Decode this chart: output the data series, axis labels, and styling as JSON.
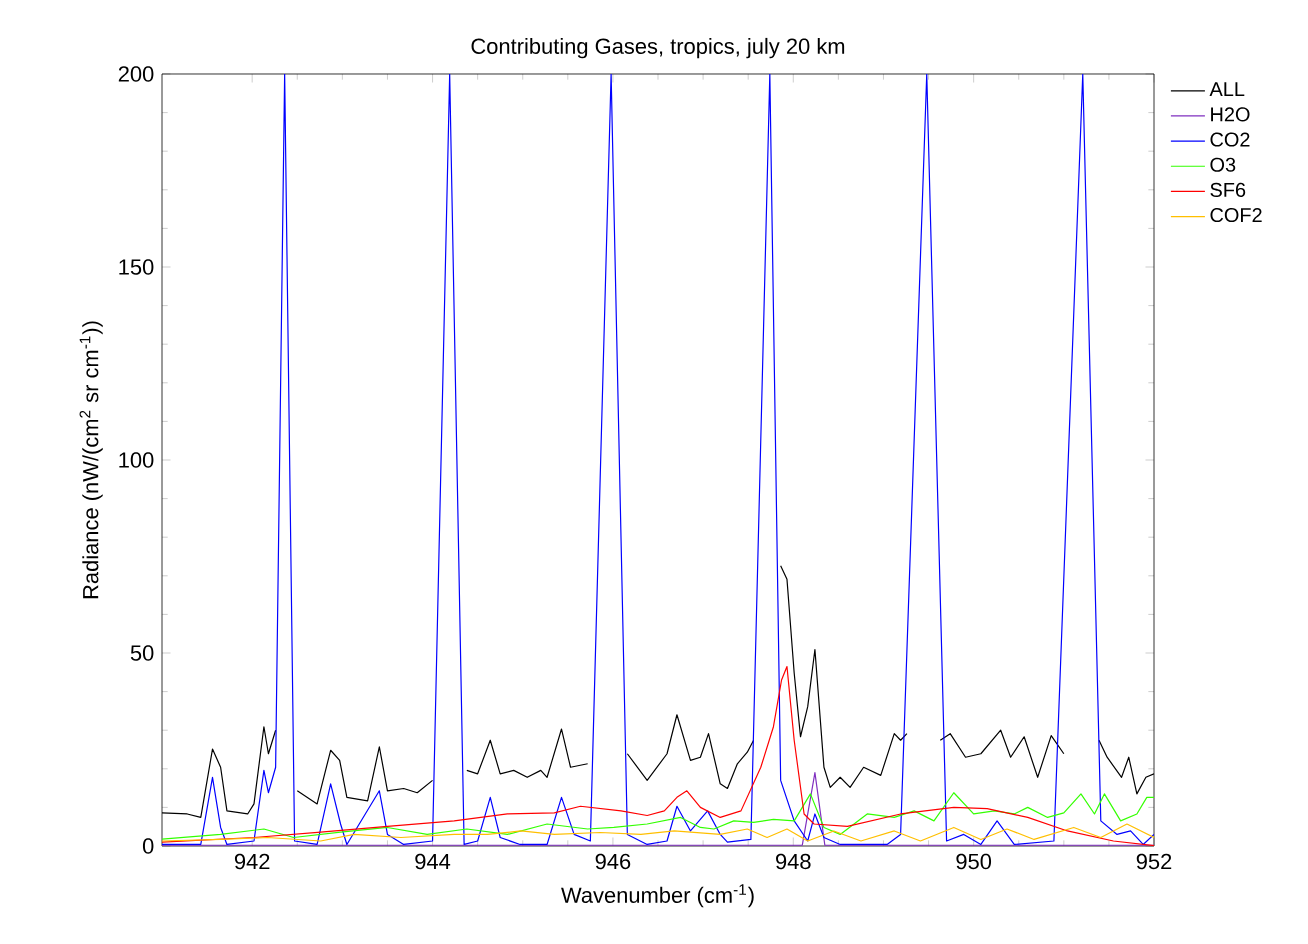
{
  "chart_data": {
    "type": "line",
    "title": "Contributing Gases, tropics, july 20 km",
    "xlabel": "Wavenumber (cm$^{-1}$)",
    "ylabel": "Radiance (nW/(cm$^{2}$ sr cm$^{-1}$))",
    "xlim": [
      941,
      952
    ],
    "xticks": [
      942,
      944,
      946,
      948,
      950,
      952
    ],
    "ylim": [
      0,
      200
    ],
    "yticks": [
      0,
      50,
      100,
      150,
      200
    ],
    "legend": "right",
    "grid": false,
    "series": [
      {
        "name": "ALL",
        "color": "#000000",
        "x": [
          941.0,
          941.28,
          941.43,
          941.56,
          941.65,
          941.72,
          941.95,
          942.02,
          942.13,
          942.18,
          942.26,
          942.36,
          942.5,
          942.72,
          942.87,
          942.97,
          943.05,
          943.28,
          943.41,
          943.5,
          943.68,
          943.83,
          944.0,
          944.19,
          944.38,
          944.5,
          944.64,
          944.75,
          944.9,
          945.05,
          945.2,
          945.27,
          945.43,
          945.53,
          945.72,
          945.98,
          946.16,
          946.38,
          946.6,
          946.71,
          946.86,
          946.97,
          947.06,
          947.19,
          947.27,
          947.38,
          947.49,
          947.56,
          947.74,
          947.86,
          947.93,
          948.01,
          948.08,
          948.16,
          948.24,
          948.34,
          948.41,
          948.52,
          948.63,
          948.78,
          948.97,
          949.12,
          949.19,
          949.26,
          949.48,
          949.63,
          949.74,
          949.91,
          950.08,
          950.3,
          950.41,
          950.56,
          950.71,
          950.86,
          951.0,
          951.21,
          951.39,
          951.48,
          951.64,
          951.72,
          951.81,
          951.91,
          952.0
        ],
        "values": [
          8.6,
          8.3,
          7.4,
          25.1,
          20.4,
          9.1,
          8.3,
          10.9,
          30.9,
          23.9,
          30,
          null,
          14.3,
          10.9,
          24.8,
          22.2,
          12.6,
          11.7,
          25.7,
          14.3,
          14.9,
          13.8,
          17.0,
          null,
          19.6,
          18.7,
          27.4,
          18.7,
          19.6,
          17.8,
          19.6,
          17.8,
          30.3,
          20.4,
          21.3,
          null,
          23.9,
          17.0,
          23.9,
          34.0,
          22.2,
          23.0,
          29.1,
          16.1,
          14.9,
          21.3,
          24.3,
          27.4,
          null,
          72.6,
          69.1,
          44.8,
          28.3,
          36.1,
          50.9,
          20.4,
          15.2,
          17.8,
          15.2,
          20.4,
          18.3,
          29.1,
          27.4,
          29.1,
          null,
          27.4,
          29.1,
          23.0,
          23.9,
          30.0,
          23.0,
          28.3,
          17.8,
          28.6,
          23.9,
          null,
          27.4,
          23.0,
          17.8,
          23.0,
          13.5,
          17.8,
          18.7
        ]
      },
      {
        "name": "H2O",
        "color": "#7f2fbf",
        "x": [
          941.0,
          948.1,
          948.24,
          948.35,
          952.0
        ],
        "values": [
          0.2,
          0.2,
          19,
          0.2,
          0.2
        ]
      },
      {
        "name": "CO2",
        "color": "#0000ff",
        "x": [
          941.0,
          941.43,
          941.56,
          941.65,
          941.72,
          942.02,
          942.13,
          942.18,
          942.26,
          942.36,
          942.47,
          942.72,
          942.87,
          942.98,
          943.05,
          943.41,
          943.5,
          943.68,
          944.0,
          944.19,
          944.35,
          944.5,
          944.64,
          944.75,
          944.97,
          945.27,
          945.43,
          945.57,
          945.75,
          945.98,
          946.16,
          946.38,
          946.6,
          946.71,
          946.86,
          947.05,
          947.19,
          947.27,
          947.53,
          947.74,
          947.86,
          948.01,
          948.16,
          948.24,
          948.34,
          948.52,
          949.04,
          949.19,
          949.48,
          949.7,
          949.89,
          950.08,
          950.26,
          950.45,
          950.89,
          951.21,
          951.41,
          951.59,
          951.74,
          951.88,
          952.0
        ],
        "values": [
          0.4,
          0.4,
          17.8,
          4.8,
          0.4,
          1.3,
          19.6,
          13.8,
          20.4,
          200,
          1.3,
          0.4,
          16.1,
          5.7,
          0.4,
          14.3,
          3.0,
          0.4,
          1.3,
          200,
          0.4,
          1.3,
          12.6,
          2.2,
          0.4,
          0.4,
          12.6,
          3.0,
          1.3,
          200,
          3.0,
          0.4,
          1.3,
          10.3,
          3.9,
          9.1,
          3.0,
          1.0,
          1.7,
          200,
          17.0,
          6.5,
          1.3,
          8.3,
          2.2,
          0.4,
          0.4,
          3.0,
          200,
          1.3,
          3.0,
          0.4,
          6.5,
          0.4,
          1.3,
          200,
          6.5,
          3.0,
          3.9,
          0.4,
          3.0
        ]
      },
      {
        "name": "O3",
        "color": "#33ff00",
        "x": [
          941.0,
          941.65,
          942.13,
          942.46,
          942.98,
          943.5,
          943.94,
          944.38,
          944.83,
          945.27,
          945.72,
          946.01,
          946.38,
          946.75,
          946.97,
          947.12,
          947.34,
          947.56,
          947.78,
          948.01,
          948.19,
          948.34,
          948.52,
          948.82,
          949.12,
          949.34,
          949.56,
          949.78,
          950.0,
          950.23,
          950.45,
          950.6,
          950.82,
          951.0,
          951.19,
          951.34,
          951.45,
          951.63,
          951.81,
          951.92,
          952.0
        ],
        "values": [
          1.8,
          3.0,
          4.4,
          2.2,
          3.6,
          4.8,
          3.0,
          4.4,
          3.0,
          5.7,
          4.4,
          4.8,
          5.7,
          7.4,
          4.8,
          4.4,
          6.5,
          6.1,
          6.9,
          6.5,
          13.5,
          4.8,
          3.0,
          8.3,
          7.4,
          9.1,
          6.5,
          13.8,
          8.3,
          9.1,
          8.3,
          10.0,
          7.4,
          8.6,
          13.5,
          8.3,
          13.5,
          6.5,
          8.3,
          12.6,
          12.6
        ]
      },
      {
        "name": "SF6",
        "color": "#ff0000",
        "x": [
          941.0,
          942.02,
          942.76,
          943.5,
          944.24,
          944.83,
          945.35,
          945.64,
          946.09,
          946.38,
          946.57,
          946.71,
          946.82,
          946.97,
          947.19,
          947.42,
          947.64,
          947.78,
          947.87,
          947.93,
          948.01,
          948.12,
          948.23,
          948.6,
          949.19,
          949.78,
          950.15,
          950.6,
          951.04,
          951.55,
          952.0
        ],
        "values": [
          1.0,
          2.2,
          3.6,
          5.1,
          6.5,
          8.3,
          8.6,
          10.3,
          9.1,
          7.9,
          9.1,
          12.6,
          14.3,
          10.0,
          7.4,
          9.1,
          20.4,
          30.9,
          43.0,
          46.5,
          27.4,
          8.3,
          5.7,
          5.1,
          8.3,
          10.0,
          9.7,
          7.4,
          3.9,
          1.3,
          0.1
        ]
      },
      {
        "name": "COF2",
        "color": "#ffbf00",
        "x": [
          941.0,
          941.65,
          942.17,
          942.76,
          943.13,
          943.65,
          944.24,
          944.61,
          944.98,
          945.35,
          945.86,
          946.31,
          946.68,
          946.97,
          947.19,
          947.49,
          947.71,
          947.93,
          948.16,
          948.45,
          948.75,
          949.12,
          949.41,
          949.78,
          950.08,
          950.37,
          950.67,
          951.11,
          951.41,
          951.7,
          952.0
        ],
        "values": [
          1.3,
          1.7,
          2.2,
          1.3,
          3.0,
          2.2,
          3.0,
          3.0,
          3.9,
          3.0,
          3.5,
          3.0,
          3.9,
          3.4,
          3.0,
          4.4,
          2.2,
          4.4,
          1.3,
          3.9,
          1.3,
          3.9,
          1.3,
          4.8,
          1.7,
          4.4,
          1.7,
          4.8,
          2.2,
          5.7,
          2.2
        ]
      }
    ]
  }
}
